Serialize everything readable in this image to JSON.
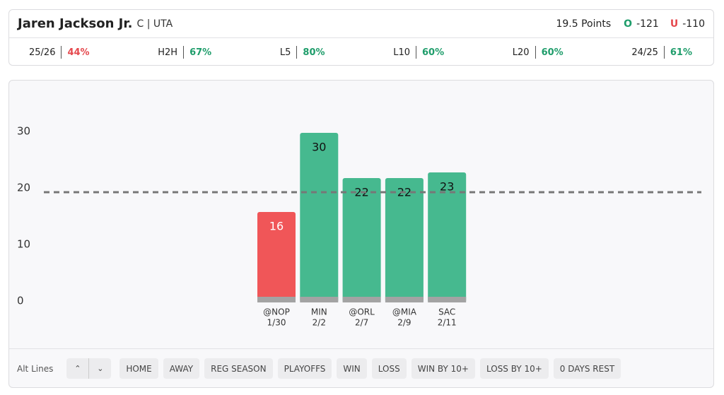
{
  "header": {
    "player": "Jaren Jackson Jr.",
    "team": "C | UTA",
    "line_label": "19.5 Points",
    "over_label": "O",
    "over_odds": "-121",
    "under_label": "U",
    "under_odds": "-110"
  },
  "stats": [
    {
      "label": "25/26",
      "value": "44%",
      "color": "#e5484d"
    },
    {
      "label": "H2H",
      "value": "67%",
      "color": "#1f9d6b"
    },
    {
      "label": "L5",
      "value": "80%",
      "color": "#1f9d6b"
    },
    {
      "label": "L10",
      "value": "60%",
      "color": "#1f9d6b"
    },
    {
      "label": "L20",
      "value": "60%",
      "color": "#1f9d6b"
    },
    {
      "label": "24/25",
      "value": "61%",
      "color": "#1f9d6b"
    }
  ],
  "chart_data": {
    "type": "bar",
    "categories": [
      "@NOP",
      "MIN",
      "@ORL",
      "@MIA",
      "SAC"
    ],
    "dates": [
      "1/30",
      "2/2",
      "2/7",
      "2/9",
      "2/11"
    ],
    "values": [
      16,
      30,
      22,
      22,
      23
    ],
    "colors": [
      "#f05658",
      "#46b98f",
      "#46b98f",
      "#46b98f",
      "#46b98f"
    ],
    "line": 19.5,
    "ylim": [
      0,
      30
    ],
    "yticks": [
      0,
      10,
      20,
      30
    ]
  },
  "toolbar": {
    "label": "Alt Lines",
    "buttons": [
      "HOME",
      "AWAY",
      "REG SEASON",
      "PLAYOFFS",
      "WIN",
      "LOSS",
      "WIN BY 10+",
      "LOSS BY 10+",
      "0 DAYS REST"
    ]
  }
}
